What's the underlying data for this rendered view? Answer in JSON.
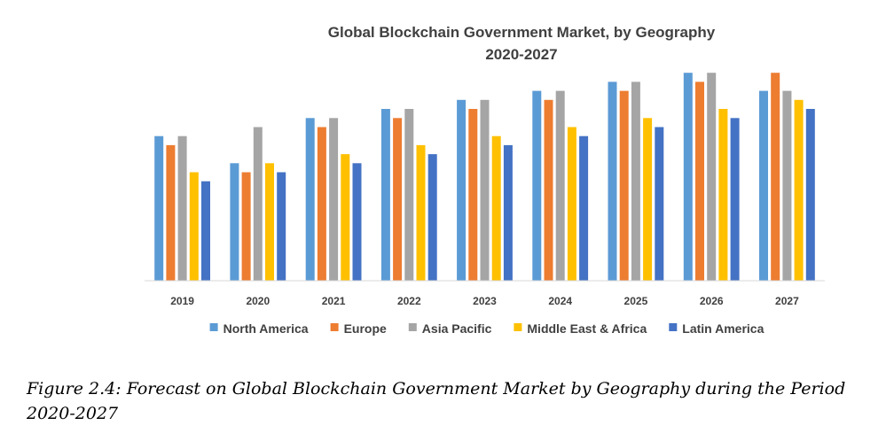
{
  "chart_data": {
    "type": "bar",
    "title": "Global Blockchain Government Market, by Geography",
    "subtitle": "2020-2027",
    "categories": [
      "2019",
      "2020",
      "2021",
      "2022",
      "2023",
      "2024",
      "2025",
      "2026",
      "2027"
    ],
    "series": [
      {
        "name": "North America",
        "color": "#5B9BD5",
        "values": [
          16,
          13,
          18,
          19,
          20,
          21,
          22,
          23,
          21
        ]
      },
      {
        "name": "Europe",
        "color": "#ED7D31",
        "values": [
          15,
          12,
          17,
          18,
          19,
          20,
          21,
          22,
          23
        ]
      },
      {
        "name": "Asia Pacific",
        "color": "#A5A5A5",
        "values": [
          16,
          17,
          18,
          19,
          20,
          21,
          22,
          23,
          21
        ]
      },
      {
        "name": "Middle East & Africa",
        "color": "#FFC000",
        "values": [
          12,
          13,
          14,
          15,
          16,
          17,
          18,
          19,
          20
        ]
      },
      {
        "name": "Latin America",
        "color": "#4472C4",
        "values": [
          11,
          12,
          13,
          14,
          15,
          16,
          17,
          18,
          19
        ]
      }
    ],
    "ylim": [
      0,
      24
    ],
    "grid": false,
    "legend": "bottom"
  },
  "caption": {
    "label": "Figure 2.4:",
    "text": "Forecast on Global Blockchain Government Market by Geography during the Period 2020-2027"
  }
}
